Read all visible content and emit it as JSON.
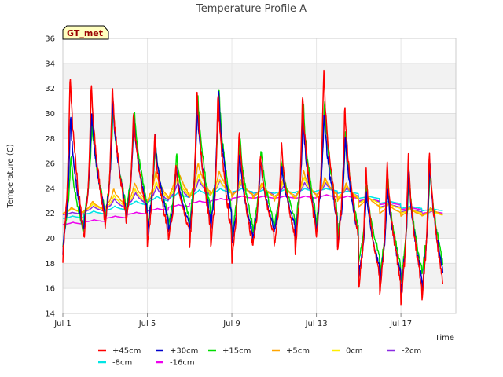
{
  "chart_data": {
    "type": "line",
    "title": "Temperature Profile A",
    "xlabel": "Time",
    "ylabel": "Temperature (C)",
    "badge": "GT_met",
    "ylim": [
      14,
      36
    ],
    "yticks": [
      14,
      16,
      18,
      20,
      22,
      24,
      26,
      28,
      30,
      32,
      34,
      36
    ],
    "xlim": [
      0,
      18.6
    ],
    "xticks": [
      {
        "day": 0,
        "label": "Jul 1"
      },
      {
        "day": 4,
        "label": "Jul 5"
      },
      {
        "day": 8,
        "label": "Jul 9"
      },
      {
        "day": 12,
        "label": "Jul 13"
      },
      {
        "day": 16,
        "label": "Jul 17"
      }
    ],
    "grid": true,
    "legend_position": "bottom",
    "series": [
      {
        "name": "+45cm",
        "color": "#ff0000",
        "min": [
          18.5,
          20.0,
          20.5,
          21.0,
          19.5,
          20.0,
          19.5,
          19.0,
          18.2,
          19.5,
          19.2,
          19.0,
          20.0,
          19.0,
          16.0,
          15.5,
          14.8,
          15.3
        ],
        "max": [
          33.8,
          32.8,
          32.7,
          30.5,
          28.5,
          26.0,
          32.5,
          32.2,
          29.0,
          27.0,
          28.0,
          32.0,
          34.0,
          31.0,
          26.0,
          26.5,
          27.2,
          27.5
        ]
      },
      {
        "name": "+30cm",
        "color": "#0000cc",
        "min": [
          19.0,
          21.0,
          21.0,
          21.5,
          20.5,
          20.5,
          20.5,
          20.5,
          19.5,
          20.0,
          20.5,
          20.0,
          20.5,
          19.5,
          17.0,
          16.5,
          15.5,
          16.0
        ],
        "max": [
          30.2,
          30.5,
          31.5,
          30.0,
          28.5,
          26.0,
          31.0,
          32.5,
          27.0,
          26.5,
          26.0,
          30.0,
          30.5,
          28.5,
          24.0,
          24.5,
          26.0,
          26.5
        ]
      },
      {
        "name": "+15cm",
        "color": "#00dd00",
        "min": [
          19.5,
          21.5,
          21.5,
          22.0,
          21.0,
          21.0,
          21.0,
          21.0,
          20.0,
          20.5,
          21.0,
          20.5,
          21.0,
          20.0,
          18.0,
          17.0,
          16.5,
          17.0
        ],
        "max": [
          27.0,
          29.5,
          31.0,
          30.5,
          28.0,
          27.0,
          32.0,
          32.5,
          28.5,
          27.5,
          26.5,
          31.0,
          31.5,
          29.0,
          24.5,
          25.0,
          25.5,
          26.0
        ]
      },
      {
        "name": "+5cm",
        "color": "#ffa500",
        "min": [
          22.0,
          22.2,
          22.5,
          22.8,
          23.0,
          23.2,
          23.3,
          23.5,
          23.3,
          23.2,
          23.0,
          23.2,
          23.3,
          23.0,
          22.5,
          22.0,
          21.8,
          21.8
        ],
        "max": [
          22.5,
          23.0,
          24.0,
          24.5,
          25.5,
          26.0,
          26.2,
          25.5,
          24.8,
          24.5,
          24.8,
          25.5,
          25.0,
          24.5,
          23.5,
          22.8,
          22.5,
          22.5
        ]
      },
      {
        "name": "0cm",
        "color": "#ffee00",
        "min": [
          22.0,
          22.2,
          22.4,
          22.7,
          23.0,
          23.2,
          23.3,
          23.5,
          23.4,
          23.3,
          23.2,
          23.3,
          23.4,
          23.2,
          22.8,
          22.4,
          22.0,
          21.8
        ],
        "max": [
          22.4,
          22.8,
          23.5,
          24.0,
          24.6,
          25.0,
          25.2,
          24.8,
          24.5,
          24.3,
          24.5,
          25.0,
          24.8,
          24.3,
          23.4,
          22.8,
          22.4,
          22.3
        ]
      },
      {
        "name": "-2cm",
        "color": "#8a2be2",
        "min": [
          21.9,
          22.1,
          22.3,
          22.6,
          22.9,
          23.1,
          23.3,
          23.5,
          23.5,
          23.4,
          23.3,
          23.4,
          23.5,
          23.3,
          22.9,
          22.5,
          22.1,
          21.9
        ],
        "max": [
          22.1,
          22.6,
          23.2,
          23.7,
          24.2,
          24.5,
          24.8,
          24.7,
          24.4,
          24.2,
          24.2,
          24.5,
          24.5,
          24.1,
          23.3,
          22.8,
          22.4,
          22.2
        ]
      },
      {
        "name": "-8cm",
        "color": "#00e5e5",
        "min": [
          21.6,
          21.9,
          22.2,
          22.6,
          22.9,
          23.2,
          23.4,
          23.6,
          23.7,
          23.6,
          23.6,
          23.7,
          23.8,
          23.6,
          23.2,
          22.8,
          22.4,
          22.2
        ],
        "max": [
          21.8,
          22.2,
          22.6,
          23.0,
          23.4,
          23.7,
          23.9,
          24.0,
          24.0,
          23.9,
          23.9,
          24.0,
          24.0,
          23.8,
          23.4,
          23.0,
          22.6,
          22.4
        ]
      },
      {
        "name": "-16cm",
        "color": "#ee00ee",
        "min": [
          21.1,
          21.3,
          21.6,
          21.9,
          22.2,
          22.5,
          22.8,
          23.0,
          23.2,
          23.2,
          23.2,
          23.2,
          23.3,
          23.2,
          23.0,
          22.7,
          22.3,
          22.0
        ],
        "max": [
          21.3,
          21.5,
          21.8,
          22.1,
          22.4,
          22.7,
          23.0,
          23.2,
          23.4,
          23.4,
          23.4,
          23.4,
          23.5,
          23.4,
          23.2,
          22.9,
          22.5,
          22.2
        ]
      }
    ]
  }
}
